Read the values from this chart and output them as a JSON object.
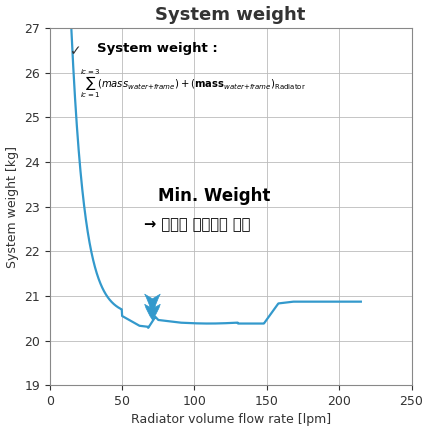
{
  "title": "System weight",
  "xlabel": "Radiator volume flow rate [lpm]",
  "ylabel": "System weight [kg]",
  "xlim": [
    0,
    250
  ],
  "ylim": [
    19,
    27
  ],
  "xticks": [
    0,
    50,
    100,
    150,
    200,
    250
  ],
  "yticks": [
    19,
    20,
    21,
    22,
    23,
    24,
    25,
    26,
    27
  ],
  "line_color": "#3399CC",
  "background_color": "#ffffff",
  "grid_color": "#bbbbbb",
  "annotation_text1": "Min. Weight",
  "annotation_text2": "→ 시스템 설계조건 반영",
  "formula_checkmark": "✓",
  "formula_label": "System weight :",
  "title_fontsize": 13,
  "label_fontsize": 9,
  "tick_fontsize": 9
}
